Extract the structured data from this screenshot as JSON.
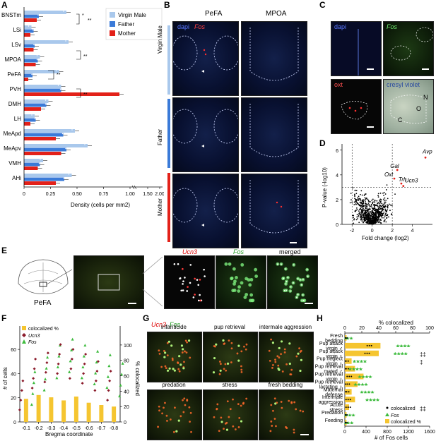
{
  "panels": {
    "A": "A",
    "B": "B",
    "C": "C",
    "D": "D",
    "E": "E",
    "F": "F",
    "G": "G",
    "H": "H"
  },
  "colors": {
    "virgin": "#a9c8ec",
    "father": "#3a7ad8",
    "mother": "#e32119",
    "colocalized": "#f5c530",
    "ucn3": "#8b1a2a",
    "fos": "#3dbb3d"
  },
  "panel_a": {
    "legend": [
      "Virgin Male",
      "Father",
      "Mother"
    ],
    "xlabel": "Density (cells per mm2)",
    "ticks": [
      "0",
      "0.25",
      "0.50",
      "0.75",
      "1.00",
      "1.50",
      "2.00"
    ],
    "regions": [
      "BNSTm",
      "LSi",
      "LSv",
      "MPOA",
      "PeFA",
      "PVH",
      "DMH",
      "LH",
      "MeApd",
      "MeApv",
      "VMH",
      "AHi"
    ],
    "sig": [
      "*",
      "**",
      "**",
      "**",
      "**"
    ]
  },
  "panel_b": {
    "col_labels": [
      "PeFA",
      "MPOA"
    ],
    "row_labels": [
      "Virgin Male",
      "Father",
      "Mother"
    ],
    "stain_dapi": "dapi",
    "stain_fos": "Fos"
  },
  "panel_c": {
    "labels": [
      "dapi",
      "Fos",
      "oxt",
      "cresyl violet"
    ],
    "regions": [
      "N",
      "O",
      "C"
    ]
  },
  "panel_d": {
    "ylabel": "P-value (-log10)",
    "xlabel": "Fold change (log2)",
    "genes": [
      "Avp",
      "Gal",
      "Oxt",
      "Trh",
      "Ucn3"
    ],
    "xticks": [
      "-2",
      "0",
      "2",
      "4"
    ],
    "yticks": [
      "0",
      "2",
      "4",
      "6"
    ]
  },
  "panel_e": {
    "region": "PeFA",
    "labels": [
      "Ucn3",
      "Fos",
      "merged"
    ]
  },
  "panel_f": {
    "legend": [
      "colocalized %",
      "Ucn3",
      "Fos"
    ],
    "ylabel_left": "# of cells",
    "ylabel_right": "% colocalized",
    "xlabel": "Bregma coordinate",
    "xticks": [
      "-0.1",
      "-0.2",
      "-0.3",
      "-0.4",
      "-0.5",
      "-0.6",
      "-0.7",
      "-0.8"
    ],
    "yticks_left": [
      "0",
      "20",
      "40",
      "60"
    ],
    "yticks_right": [
      "0",
      "20",
      "40",
      "60",
      "80",
      "100"
    ]
  },
  "panel_g": {
    "labels_top": [
      "Ucn3",
      "Fos"
    ],
    "conditions": [
      "infanticide",
      "pup retrieval",
      "intermale aggression",
      "predation",
      "stress",
      "fresh bedding"
    ]
  },
  "panel_h": {
    "top_label": "% colocalized",
    "top_ticks": [
      "0",
      "20",
      "40",
      "60",
      "80",
      "100"
    ],
    "bottom_label": "# of Fos cells",
    "bottom_ticks": [
      "0",
      "400",
      "800",
      "1200",
      "1600"
    ],
    "conditions": [
      {
        "line1": "Fresh",
        "line2": "bedding"
      },
      {
        "line1": "Pup attack",
        "line2": "virgin ♂"
      },
      {
        "line1": "Pup attack",
        "line2": "virgin ♀"
      },
      {
        "line1": "Pup neglect",
        "line2": "virgin ♀"
      },
      {
        "line1": "Pup retrieval",
        "line2": "mated ♂"
      },
      {
        "line1": "Pup retrieval",
        "line2": "virgin ♀"
      },
      {
        "line1": "Pup retrieval",
        "line2": "lactating ♀"
      },
      {
        "line1": "Maternal",
        "line2": "defense"
      },
      {
        "line1": "Intermale",
        "line2": "aggression"
      },
      {
        "line1": "Acute",
        "line2": "stress"
      },
      {
        "line1": "Predation",
        "line2": ""
      },
      {
        "line1": "Feeding",
        "line2": ""
      }
    ],
    "legend": [
      "colocalized",
      "Fos",
      "colocalized %"
    ],
    "sig": [
      "‡‡",
      "‡",
      "‡‡"
    ]
  },
  "chart_data": [
    {
      "type": "bar",
      "title": "",
      "xlabel": "Density (cells per mm2)",
      "categories": [
        "BNSTm",
        "LSi",
        "LSv",
        "MPOA",
        "PeFA",
        "PVH",
        "DMH",
        "LH",
        "MeApd",
        "MeApv",
        "VMH",
        "AHi"
      ],
      "series": [
        {
          "name": "Virgin Male",
          "values": [
            0.4,
            0.07,
            0.42,
            0.15,
            0.33,
            0.35,
            0.23,
            0.1,
            0.48,
            0.6,
            0.18,
            0.45
          ]
        },
        {
          "name": "Father",
          "values": [
            0.14,
            0.09,
            0.1,
            0.13,
            0.08,
            0.35,
            0.21,
            0.11,
            0.37,
            0.4,
            0.15,
            0.38
          ]
        },
        {
          "name": "Mother",
          "values": [
            0.12,
            0.06,
            0.09,
            0.11,
            0.04,
            0.9,
            0.16,
            0.06,
            0.3,
            0.35,
            0.13,
            0.3
          ]
        }
      ],
      "xlim": [
        0,
        2.0
      ]
    },
    {
      "type": "scatter",
      "xlabel": "Fold change (log2)",
      "ylabel": "P-value (-log10)",
      "xlim": [
        -3,
        6
      ],
      "ylim": [
        0,
        6.5
      ],
      "labeled_points": [
        {
          "name": "Avp",
          "x": 5.3,
          "y": 5.4
        },
        {
          "name": "Gal",
          "x": 2.5,
          "y": 4.4
        },
        {
          "name": "Oxt",
          "x": 2.2,
          "y": 3.7
        },
        {
          "name": "Trh",
          "x": 2.9,
          "y": 3.3
        },
        {
          "name": "Ucn3",
          "x": 3.1,
          "y": 3.1
        }
      ]
    },
    {
      "type": "bar",
      "xlabel": "Bregma coordinate",
      "categories": [
        "-0.1",
        "-0.2",
        "-0.3",
        "-0.4",
        "-0.5",
        "-0.6",
        "-0.7",
        "-0.8"
      ],
      "series": [
        {
          "name": "colocalized %",
          "values": [
            30,
            35,
            32,
            28,
            33,
            25,
            22,
            20
          ]
        },
        {
          "name": "Ucn3",
          "values": [
            22,
            40,
            45,
            52,
            48,
            44,
            38,
            30
          ]
        },
        {
          "name": "Fos",
          "values": [
            28,
            40,
            50,
            55,
            50,
            45,
            42,
            35
          ]
        }
      ]
    },
    {
      "type": "bar",
      "xlabel": "# of Fos cells",
      "categories": [
        "Fresh bedding",
        "Pup attack virgin ♂",
        "Pup attack virgin ♀",
        "Pup neglect virgin ♀",
        "Pup retrieval mated ♂",
        "Pup retrieval virgin ♀",
        "Pup retrieval lactating ♀",
        "Maternal defense",
        "Intermale aggression",
        "Acute stress",
        "Predation",
        "Feeding"
      ],
      "series": [
        {
          "name": "colocalized %",
          "values": [
            2,
            42,
            40,
            8,
            12,
            22,
            15,
            8,
            12,
            5,
            2,
            2
          ]
        },
        {
          "name": "Fos",
          "values": [
            20,
            1100,
            1050,
            280,
            200,
            380,
            300,
            420,
            520,
            1250,
            60,
            30
          ]
        }
      ]
    }
  ]
}
